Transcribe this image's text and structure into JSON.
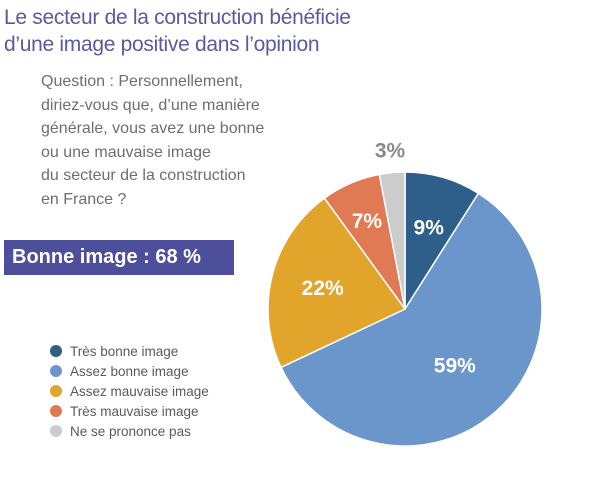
{
  "title_lines": [
    "Le secteur de la construction bénéficie",
    "d’une image positive dans l’opinion"
  ],
  "question_lines": [
    "Question : Personnellement,",
    "diriez-vous que, d’une manière",
    "générale, vous avez une bonne",
    "ou une mauvaise image",
    "du secteur de la construction",
    "en France ?"
  ],
  "banner": "Bonne image : 68 %",
  "chart_data": {
    "type": "pie",
    "slices": [
      {
        "label": "Très bonne image",
        "value": 9,
        "value_label": "9%",
        "color": "#2e5e8a"
      },
      {
        "label": "Assez bonne image",
        "value": 59,
        "value_label": "59%",
        "color": "#6b96cb"
      },
      {
        "label": "Assez mauvaise image",
        "value": 22,
        "value_label": "22%",
        "color": "#e0a52a"
      },
      {
        "label": "Très mauvaise image",
        "value": 7,
        "value_label": "7%",
        "color": "#e07a55"
      },
      {
        "label": "Ne se prononce pas",
        "value": 3,
        "value_label": "3%",
        "color": "#cccccc"
      }
    ],
    "legend_position": "bottom-left"
  }
}
